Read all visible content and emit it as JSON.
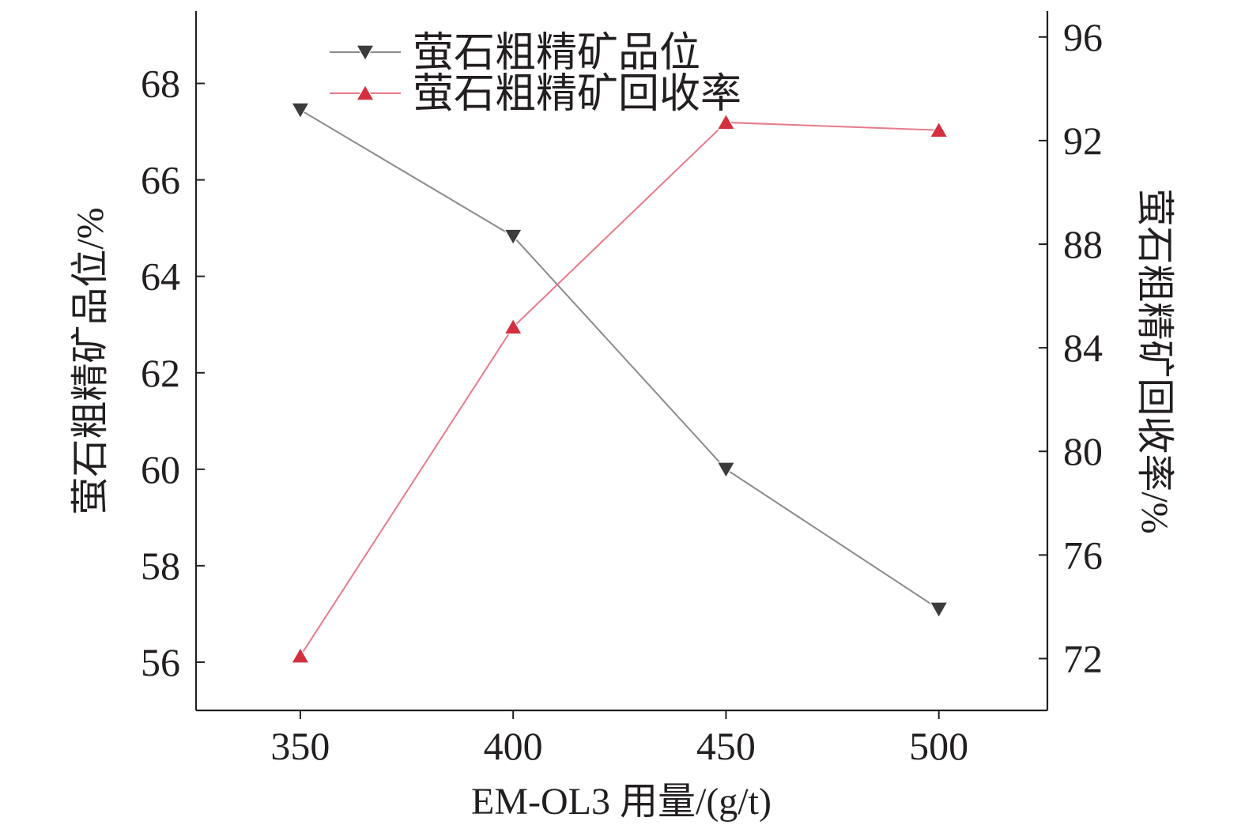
{
  "chart_data": {
    "type": "line",
    "x": [
      350,
      400,
      450,
      500
    ],
    "xlabel": "EM-OL3 用量/(g/t)",
    "ylabel_left": "萤石粗精矿品位/%",
    "ylabel_right": "萤石粗精矿回收率/%",
    "x_ticks": [
      "350",
      "400",
      "450",
      "500"
    ],
    "y_left_ticks": [
      "56",
      "58",
      "60",
      "62",
      "64",
      "66",
      "68"
    ],
    "y_right_ticks": [
      "72",
      "76",
      "80",
      "84",
      "88",
      "92",
      "96"
    ],
    "xlim": [
      325.5,
      525.5
    ],
    "ylim_left": [
      55.0,
      69.5
    ],
    "ylim_right": [
      70.0,
      97.0
    ],
    "grid": false,
    "legend_position": "top-left",
    "series": [
      {
        "name": "萤石粗精矿品位",
        "axis": "left",
        "marker": "triangle-down",
        "color": "#8a8a8a",
        "marker_color": "#3c3c3c",
        "values": [
          67.45,
          64.83,
          60.0,
          57.1
        ]
      },
      {
        "name": "萤石粗精矿回收率",
        "axis": "right",
        "marker": "triangle-up",
        "color": "#e87a8a",
        "marker_color": "#d32f3f",
        "values": [
          72.1,
          84.8,
          92.7,
          92.4
        ]
      }
    ]
  }
}
